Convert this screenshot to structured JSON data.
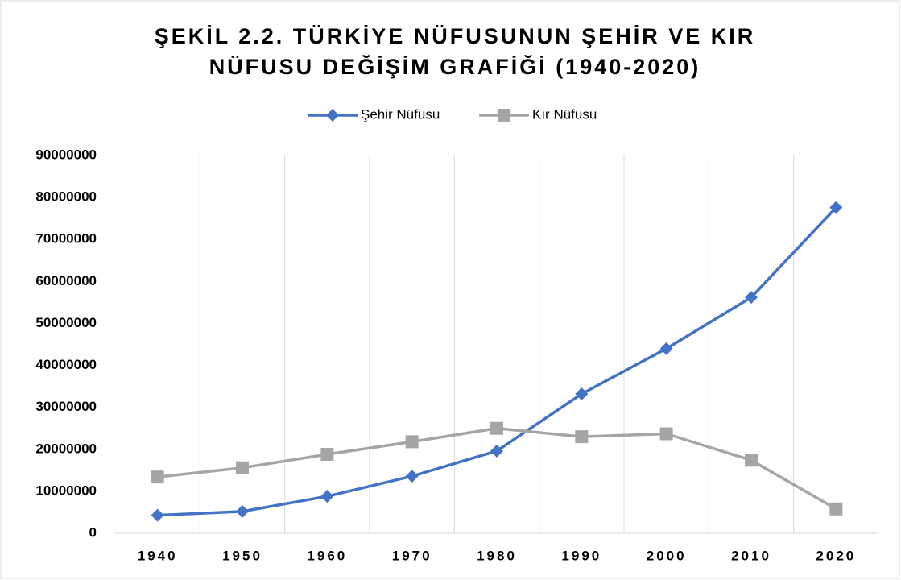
{
  "chart_data": {
    "type": "line",
    "title": [
      "ŞEKİL 2.2. TÜRKİYE NÜFUSUNUN ŞEHİR VE KIR",
      "NÜFUSU DEĞİŞİM GRAFİĞİ (1940-2020)"
    ],
    "categories": [
      "1940",
      "1950",
      "1960",
      "1970",
      "1980",
      "1990",
      "2000",
      "2010",
      "2020"
    ],
    "series": [
      {
        "name": "Şehir Nüfusu",
        "color": "#4472c4",
        "marker": "diamond",
        "values": [
          4300000,
          5200000,
          8800000,
          13600000,
          19600000,
          33200000,
          44000000,
          56200000,
          77600000
        ]
      },
      {
        "name": "Kır Nüfusu",
        "color": "#a5a5a5",
        "marker": "square",
        "values": [
          13400000,
          15600000,
          18800000,
          21800000,
          25000000,
          23000000,
          23700000,
          17400000,
          5800000
        ]
      }
    ],
    "ylim": [
      0,
      90000000
    ],
    "yticks": [
      0,
      10000000,
      20000000,
      30000000,
      40000000,
      50000000,
      60000000,
      70000000,
      80000000,
      90000000
    ],
    "grid": "x",
    "legend": "top"
  }
}
